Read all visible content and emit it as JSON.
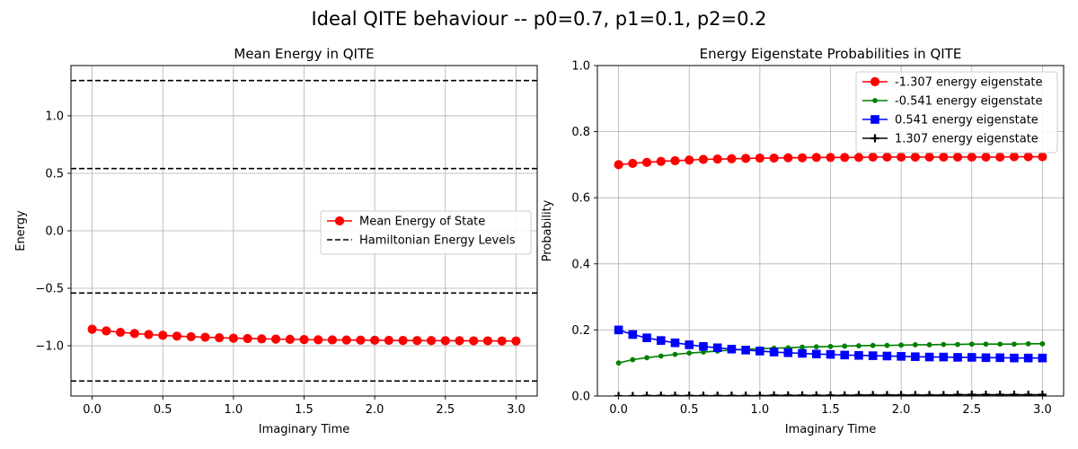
{
  "suptitle": "Ideal QITE behaviour -- p0=0.7, p1=0.1, p2=0.2",
  "chart_data": [
    {
      "type": "line",
      "title": "Mean Energy in QITE",
      "xlabel": "Imaginary Time",
      "ylabel": "Energy",
      "xlim": [
        -0.15,
        3.15
      ],
      "ylim": [
        -1.437,
        1.437
      ],
      "xticks": [
        0.0,
        0.5,
        1.0,
        1.5,
        2.0,
        2.5,
        3.0
      ],
      "xtick_labels": [
        "0.0",
        "0.5",
        "1.0",
        "1.5",
        "2.0",
        "2.5",
        "3.0"
      ],
      "yticks": [
        -1.0,
        -0.5,
        0.0,
        0.5,
        1.0
      ],
      "ytick_labels": [
        "−1.0",
        "−0.5",
        "0.0",
        "0.5",
        "1.0"
      ],
      "grid": true,
      "legend_position": "center-right",
      "x": [
        0.0,
        0.1,
        0.2,
        0.3,
        0.4,
        0.5,
        0.6,
        0.7,
        0.8,
        0.9,
        1.0,
        1.1,
        1.2,
        1.3,
        1.4,
        1.5,
        1.6,
        1.7,
        1.8,
        1.9,
        2.0,
        2.1,
        2.2,
        2.3,
        2.4,
        2.5,
        2.6,
        2.7,
        2.8,
        2.9,
        3.0
      ],
      "series": [
        {
          "name": "Mean Energy of State",
          "color": "#ff0000",
          "marker": "circle",
          "values": [
            -0.856,
            -0.871,
            -0.883,
            -0.893,
            -0.902,
            -0.909,
            -0.916,
            -0.921,
            -0.926,
            -0.93,
            -0.934,
            -0.937,
            -0.94,
            -0.942,
            -0.944,
            -0.946,
            -0.948,
            -0.949,
            -0.95,
            -0.951,
            -0.952,
            -0.953,
            -0.954,
            -0.955,
            -0.955,
            -0.956,
            -0.956,
            -0.957,
            -0.957,
            -0.958,
            -0.958
          ]
        }
      ],
      "hlines": {
        "name": "Hamiltonian Energy Levels",
        "color": "#000000",
        "style": "dashed",
        "values": [
          -1.307,
          -0.541,
          0.541,
          1.307
        ]
      }
    },
    {
      "type": "line",
      "title": "Energy Eigenstate Probabilities in QITE",
      "xlabel": "Imaginary Time",
      "ylabel": "Probability",
      "xlim": [
        -0.15,
        3.15
      ],
      "ylim": [
        0.0,
        1.0
      ],
      "xticks": [
        0.0,
        0.5,
        1.0,
        1.5,
        2.0,
        2.5,
        3.0
      ],
      "xtick_labels": [
        "0.0",
        "0.5",
        "1.0",
        "1.5",
        "2.0",
        "2.5",
        "3.0"
      ],
      "yticks": [
        0.0,
        0.2,
        0.4,
        0.6,
        0.8,
        1.0
      ],
      "ytick_labels": [
        "0.0",
        "0.2",
        "0.4",
        "0.6",
        "0.8",
        "1.0"
      ],
      "grid": true,
      "legend_position": "top-right",
      "x": [
        0.0,
        0.1,
        0.2,
        0.3,
        0.4,
        0.5,
        0.6,
        0.7,
        0.8,
        0.9,
        1.0,
        1.1,
        1.2,
        1.3,
        1.4,
        1.5,
        1.6,
        1.7,
        1.8,
        1.9,
        2.0,
        2.1,
        2.2,
        2.3,
        2.4,
        2.5,
        2.6,
        2.7,
        2.8,
        2.9,
        3.0
      ],
      "series": [
        {
          "name": "-1.307 energy eigenstate",
          "color": "#ff0000",
          "marker": "circle",
          "values": [
            0.7,
            0.704,
            0.707,
            0.71,
            0.712,
            0.714,
            0.716,
            0.717,
            0.718,
            0.719,
            0.72,
            0.72,
            0.721,
            0.721,
            0.722,
            0.722,
            0.722,
            0.722,
            0.723,
            0.723,
            0.723,
            0.723,
            0.723,
            0.723,
            0.723,
            0.723,
            0.723,
            0.723,
            0.724,
            0.724,
            0.724
          ]
        },
        {
          "name": "-0.541 energy eigenstate",
          "color": "#008000",
          "marker": "point",
          "values": [
            0.1,
            0.11,
            0.116,
            0.121,
            0.126,
            0.13,
            0.133,
            0.136,
            0.139,
            0.141,
            0.143,
            0.145,
            0.146,
            0.148,
            0.149,
            0.15,
            0.151,
            0.152,
            0.153,
            0.153,
            0.154,
            0.155,
            0.155,
            0.156,
            0.156,
            0.157,
            0.157,
            0.157,
            0.157,
            0.158,
            0.158
          ]
        },
        {
          "name": "0.541 energy eigenstate",
          "color": "#0000ff",
          "marker": "square",
          "values": [
            0.2,
            0.186,
            0.176,
            0.168,
            0.161,
            0.155,
            0.15,
            0.146,
            0.142,
            0.139,
            0.136,
            0.133,
            0.131,
            0.129,
            0.127,
            0.126,
            0.124,
            0.123,
            0.122,
            0.121,
            0.12,
            0.119,
            0.118,
            0.118,
            0.117,
            0.117,
            0.116,
            0.116,
            0.115,
            0.115,
            0.115
          ]
        },
        {
          "name": "1.307 energy eigenstate",
          "color": "#000000",
          "marker": "plus",
          "values": [
            0.0,
            0.0,
            0.001,
            0.001,
            0.001,
            0.001,
            0.001,
            0.001,
            0.001,
            0.001,
            0.001,
            0.002,
            0.002,
            0.002,
            0.002,
            0.002,
            0.002,
            0.003,
            0.003,
            0.003,
            0.003,
            0.003,
            0.003,
            0.003,
            0.004,
            0.004,
            0.004,
            0.004,
            0.004,
            0.004,
            0.004
          ]
        }
      ]
    }
  ]
}
